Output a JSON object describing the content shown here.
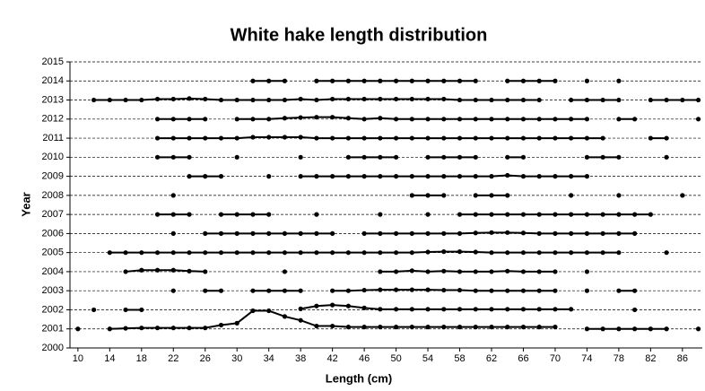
{
  "chart_data": {
    "type": "line",
    "title": "White hake length distribution",
    "x_label": "Length (cm)",
    "y_label": "Year",
    "color": "#000000",
    "grid": true,
    "xlim": [
      9,
      88.5
    ],
    "xticks": [
      10,
      14,
      18,
      22,
      26,
      30,
      34,
      38,
      42,
      46,
      50,
      54,
      58,
      62,
      66,
      70,
      74,
      78,
      82,
      86
    ],
    "ylim": [
      2000,
      2015
    ],
    "yticks": [
      2000,
      2001,
      2002,
      2003,
      2004,
      2005,
      2006,
      2007,
      2008,
      2009,
      2010,
      2011,
      2012,
      2013,
      2014,
      2015
    ],
    "x": [
      10,
      12,
      14,
      16,
      18,
      20,
      22,
      24,
      26,
      28,
      30,
      32,
      34,
      36,
      38,
      40,
      42,
      44,
      46,
      48,
      50,
      52,
      54,
      56,
      58,
      60,
      62,
      64,
      66,
      68,
      70,
      72,
      74,
      76,
      78,
      80,
      82,
      84,
      86,
      88
    ],
    "series": [
      {
        "values": [
          2001,
          null,
          2001,
          2001.03,
          2001.05,
          2001.05,
          2001.05,
          2001.05,
          2001.05,
          2001.2,
          2001.3,
          2001.95,
          2001.95,
          2001.65,
          2001.45,
          2001.15,
          2001.15,
          2001.1,
          2001.1,
          2001.1,
          2001.1,
          2001.1,
          2001.1,
          2001.1,
          2001.1,
          2001.1,
          2001.1,
          2001.1,
          2001.1,
          2001.1,
          2001.1,
          null,
          2001,
          2001,
          2001,
          2001,
          2001,
          2001,
          null,
          2001
        ]
      },
      {
        "values": [
          null,
          2002,
          null,
          2002,
          2002,
          null,
          null,
          null,
          null,
          null,
          null,
          null,
          null,
          null,
          2002.05,
          2002.2,
          2002.25,
          2002.2,
          2002.1,
          2002.03,
          2002.03,
          2002.03,
          2002.03,
          2002.03,
          2002.03,
          2002.03,
          2002.03,
          2002.03,
          2002.03,
          2002.03,
          2002.03,
          2002.03,
          null,
          null,
          null,
          2002,
          null,
          null,
          null,
          null
        ]
      },
      {
        "values": [
          null,
          null,
          null,
          null,
          null,
          null,
          2003,
          null,
          2003,
          2003,
          null,
          2003,
          2003,
          2003,
          2003,
          null,
          2003,
          2003,
          2003.03,
          2003.05,
          2003.05,
          2003.05,
          2003.05,
          2003.03,
          2003.03,
          2003,
          2003,
          2003,
          2003,
          2003,
          2003,
          null,
          2003,
          null,
          2003,
          2003,
          null,
          null,
          null,
          null
        ]
      },
      {
        "values": [
          null,
          null,
          null,
          2004,
          2004.08,
          2004.08,
          2004.08,
          2004.03,
          2004,
          null,
          null,
          null,
          null,
          2004,
          null,
          null,
          null,
          null,
          null,
          2004,
          2004,
          2004.05,
          2004,
          2004.03,
          2004,
          2004,
          2004,
          2004.03,
          2004,
          2004,
          2004,
          null,
          2004,
          null,
          null,
          null,
          null,
          null,
          null,
          null
        ]
      },
      {
        "values": [
          null,
          null,
          2005,
          2005,
          2005,
          2005,
          2005,
          2005,
          2005,
          2005,
          2005,
          2005,
          2005,
          2005,
          2005,
          2005,
          2005,
          2005,
          2005,
          2005,
          2005,
          2005,
          2005.03,
          2005.05,
          2005.05,
          2005.03,
          2005,
          2005,
          2005,
          2005,
          2005,
          2005,
          2005,
          2005,
          2005,
          null,
          null,
          2005,
          null,
          null
        ]
      },
      {
        "values": [
          null,
          null,
          null,
          null,
          null,
          null,
          2006,
          null,
          2006,
          2006,
          2006,
          2006,
          2006,
          2006,
          2006,
          2006,
          2006,
          null,
          2006,
          2006,
          2006,
          2006,
          2006,
          2006,
          2006,
          2006.03,
          2006.05,
          2006.05,
          2006.03,
          2006,
          2006,
          2006,
          2006,
          2006,
          2006,
          2006,
          null,
          null,
          null,
          null
        ]
      },
      {
        "values": [
          null,
          null,
          null,
          null,
          null,
          2007,
          2007,
          2007,
          null,
          2007,
          2007,
          2007,
          2007,
          null,
          null,
          2007,
          null,
          null,
          null,
          2007,
          null,
          null,
          2007,
          null,
          2007,
          2007,
          2007,
          2007,
          2007,
          2007,
          2007,
          2007,
          2007,
          2007,
          2007,
          2007,
          2007,
          null,
          null,
          null
        ]
      },
      {
        "values": [
          null,
          null,
          null,
          null,
          null,
          null,
          2008,
          null,
          null,
          null,
          null,
          null,
          null,
          null,
          null,
          null,
          null,
          null,
          null,
          null,
          null,
          2008,
          2008,
          2008,
          null,
          2008,
          2008,
          2008,
          null,
          null,
          null,
          2008,
          null,
          null,
          2008,
          null,
          null,
          null,
          2008,
          null
        ]
      },
      {
        "values": [
          null,
          null,
          null,
          null,
          null,
          null,
          null,
          2009,
          2009,
          2009,
          null,
          null,
          2009,
          null,
          2009,
          2009,
          2009,
          2009,
          2009,
          2009,
          2009,
          2009,
          2009,
          2009,
          2009,
          2009,
          2009,
          2009.05,
          2009,
          2009,
          2009,
          2009,
          2009,
          null,
          null,
          null,
          null,
          null,
          null,
          null
        ]
      },
      {
        "values": [
          null,
          null,
          null,
          null,
          null,
          2010,
          2010,
          2010,
          null,
          null,
          2010,
          null,
          null,
          null,
          2010,
          null,
          null,
          2010,
          2010,
          2010,
          2010,
          null,
          2010,
          2010,
          2010,
          2010,
          null,
          2010,
          2010,
          null,
          null,
          null,
          2010,
          2010,
          2010,
          null,
          null,
          2010,
          null,
          null
        ]
      },
      {
        "values": [
          null,
          null,
          null,
          null,
          null,
          2011,
          2011,
          2011,
          2011,
          2011,
          2011,
          2011.05,
          2011.05,
          2011.05,
          2011.05,
          2011,
          2011,
          2011,
          2011,
          2011,
          2011,
          2011,
          2011,
          2011,
          2011,
          2011,
          2011,
          2011,
          2011,
          2011,
          2011,
          2011,
          2011,
          2011,
          null,
          null,
          2011,
          2011,
          null,
          null
        ]
      },
      {
        "values": [
          null,
          null,
          null,
          null,
          null,
          2012,
          2012,
          2012,
          2012,
          null,
          2012,
          2012,
          2012,
          2012.05,
          2012.08,
          2012.1,
          2012.1,
          2012.05,
          2012,
          2012.05,
          2012,
          2012,
          2012,
          2012,
          2012,
          2012,
          2012,
          2012,
          2012,
          2012,
          2012,
          2012,
          2012,
          null,
          2012,
          2012,
          null,
          null,
          null,
          2012
        ]
      },
      {
        "values": [
          null,
          2013,
          2013,
          2013,
          2013,
          2013.05,
          2013.05,
          2013.08,
          2013.05,
          2013,
          2013,
          2013,
          2013,
          2013,
          2013.05,
          2013,
          2013.05,
          2013.05,
          2013.05,
          2013.05,
          2013.05,
          2013.05,
          2013.05,
          2013.05,
          2013,
          2013,
          2013,
          2013,
          2013,
          2013,
          null,
          2013,
          2013,
          2013,
          2013,
          null,
          2013,
          2013,
          2013,
          2013
        ]
      },
      {
        "values": [
          null,
          null,
          null,
          null,
          null,
          null,
          null,
          null,
          null,
          null,
          null,
          2014,
          2014,
          2014,
          null,
          2014,
          2014,
          2014,
          2014,
          2014,
          2014,
          2014,
          2014,
          2014,
          2014,
          2014,
          null,
          2014,
          2014,
          2014,
          2014,
          null,
          2014,
          null,
          2014,
          null,
          null,
          null,
          null,
          null
        ]
      }
    ]
  }
}
